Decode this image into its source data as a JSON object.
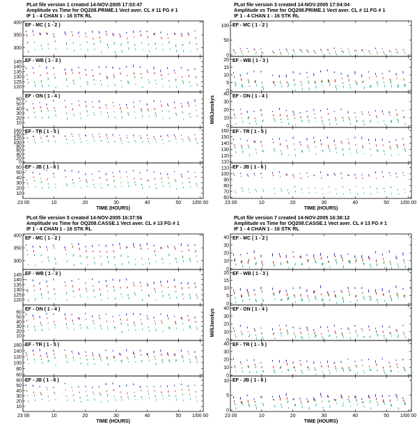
{
  "figure": {
    "xlabel": "TIME (HOURS)",
    "ylabel": "MilliJanskys",
    "x_tick_labels": [
      "23 00",
      "10",
      "20",
      "30",
      "40",
      "50",
      "1/00 00"
    ]
  },
  "chart_data": [
    {
      "type": "scatter",
      "header": [
        "PLot file version 1  created 14-NOV-2005 17:03:47",
        "Amplitude vs Time  for  OQ208.PRIME.1  Vect aver.  CL # 11  FG # 1",
        "IF 1 - 4   CHAN 1 - 16   STK RL"
      ],
      "xlabel": "TIME (HOURS)",
      "ylabel": "MilliJanskys",
      "xlim": [
        0,
        58
      ],
      "x_ticks": [
        0,
        10,
        20,
        30,
        40,
        50,
        57
      ],
      "panels": [
        {
          "label": "EF - MC ( 1 - 2 )",
          "ylim": [
            265,
            405
          ],
          "ticks": [
            300,
            350,
            400
          ],
          "base": [
            360,
            345,
            315,
            290
          ],
          "spread": 10
        },
        {
          "label": "EF - WB ( 1 - 3 )",
          "ylim": [
            115,
            150
          ],
          "ticks": [
            120,
            125,
            130,
            135,
            140,
            145
          ],
          "base": [
            138,
            132,
            127,
            122
          ],
          "spread": 2.5
        },
        {
          "label": "EF - ON ( 1 - 4 )",
          "ylim": [
            0,
            75
          ],
          "ticks": [
            0,
            10,
            20,
            30,
            40,
            50,
            60
          ],
          "base": [
            52,
            42,
            32,
            22
          ],
          "spread": 5
        },
        {
          "label": "EF - TR ( 1 - 5 )",
          "ylim": [
            -5,
            175
          ],
          "ticks": [
            0,
            20,
            40,
            60,
            80,
            100,
            120,
            140,
            160
          ],
          "base": [
            135,
            125,
            112,
            100
          ],
          "spread": 8
        },
        {
          "label": "EF - JB ( 1 - 6 )",
          "ylim": [
            0,
            68
          ],
          "ticks": [
            10,
            20,
            30,
            40,
            50,
            60
          ],
          "base": [
            50,
            38,
            30,
            22
          ],
          "spread": 4
        }
      ]
    },
    {
      "type": "scatter",
      "header": [
        "PLot file version 3  created 14-NOV-2005 17:04:04",
        "Amplitude vs Time  for  OQ208.PRIME.1  Vect aver.  CL # 11  FG # 1",
        "IF 1 - 4   CHAN 1 - 16   STK RL"
      ],
      "xlabel": "TIME (HOURS)",
      "ylabel": "MilliJanskys",
      "xlim": [
        0,
        58
      ],
      "x_ticks": [
        0,
        10,
        20,
        30,
        40,
        50,
        57
      ],
      "panels": [
        {
          "label": "EF - MC ( 1 - 2 )",
          "ylim": [
            -5,
            115
          ],
          "ticks": [
            0,
            50,
            100
          ],
          "base": [
            18,
            12,
            8,
            4
          ],
          "spread": 5
        },
        {
          "label": "EF - WB ( 1 - 3 )",
          "ylim": [
            -1,
            22
          ],
          "ticks": [
            0,
            5,
            10,
            15,
            20
          ],
          "base": [
            11,
            7,
            4,
            2
          ],
          "spread": 2
        },
        {
          "label": "EF - ON ( 1 - 4 )",
          "ylim": [
            -2,
            42
          ],
          "ticks": [
            0,
            10,
            20,
            30,
            40
          ],
          "base": [
            18,
            12,
            8,
            4
          ],
          "spread": 3
        },
        {
          "label": "EF - TR ( 1 - 5 )",
          "ylim": [
            108,
            165
          ],
          "ticks": [
            110,
            120,
            130,
            140,
            150,
            160
          ],
          "base": [
            145,
            138,
            130,
            124
          ],
          "spread": 4
        },
        {
          "label": "EF - JB ( 1 - 6 )",
          "ylim": [
            58,
            118
          ],
          "ticks": [
            60,
            70,
            80,
            90,
            100,
            110
          ],
          "base": [
            100,
            95,
            75,
            68
          ],
          "spread": 3
        }
      ]
    },
    {
      "type": "scatter",
      "header": [
        "PLot file version 5  created 14-NOV-2005 16:37:56",
        "Amplitude vs Time  for  OQ208.CASSE.1  Vect aver.  CL # 13  FG # 1",
        "IF 1 - 4   CHAN 1 - 16   STK RL"
      ],
      "xlabel": "TIME (HOURS)",
      "ylabel": "MilliJanskys",
      "xlim": [
        0,
        58
      ],
      "x_ticks": [
        0,
        10,
        20,
        30,
        40,
        50,
        57
      ],
      "panels": [
        {
          "label": "EF - MC ( 1 - 2 )",
          "ylim": [
            265,
            405
          ],
          "ticks": [
            300,
            350,
            400
          ],
          "base": [
            360,
            345,
            315,
            290
          ],
          "spread": 10
        },
        {
          "label": "EF - WB ( 1 - 3 )",
          "ylim": [
            115,
            150
          ],
          "ticks": [
            120,
            125,
            130,
            135,
            140,
            145
          ],
          "base": [
            138,
            132,
            127,
            122
          ],
          "spread": 2.5
        },
        {
          "label": "EF - ON ( 1 - 4 )",
          "ylim": [
            0,
            75
          ],
          "ticks": [
            0,
            10,
            20,
            30,
            40,
            50,
            60
          ],
          "base": [
            52,
            42,
            32,
            22
          ],
          "spread": 5
        },
        {
          "label": "EF - TR ( 1 - 5 )",
          "ylim": [
            55,
            175
          ],
          "ticks": [
            60,
            80,
            100,
            120,
            140,
            160
          ],
          "base": [
            135,
            125,
            112,
            100
          ],
          "spread": 8
        },
        {
          "label": "EF - JB ( 1 - 6 )",
          "ylim": [
            0,
            68
          ],
          "ticks": [
            10,
            20,
            30,
            40,
            50,
            60
          ],
          "base": [
            50,
            38,
            30,
            22
          ],
          "spread": 4
        }
      ]
    },
    {
      "type": "scatter",
      "header": [
        "PLot file version 7  created 14-NOV-2005 16:38:12",
        "Amplitude vs Time  for  OQ208.CASSE.1  Vect aver.  CL # 13  FG # 1",
        "IF 1 - 4   CHAN 1 - 16   STK RL"
      ],
      "xlabel": "TIME (HOURS)",
      "ylabel": "MilliJanskys",
      "xlim": [
        0,
        58
      ],
      "x_ticks": [
        0,
        10,
        20,
        30,
        40,
        50,
        57
      ],
      "panels": [
        {
          "label": "EF - MC ( 1 - 2 )",
          "ylim": [
            -1,
            44
          ],
          "ticks": [
            0,
            10,
            20,
            30,
            40
          ],
          "base": [
            18,
            12,
            8,
            4
          ],
          "spread": 4
        },
        {
          "label": "EF - WB ( 1 - 3 )",
          "ylim": [
            -1,
            22
          ],
          "ticks": [
            0,
            5,
            10,
            15,
            20
          ],
          "base": [
            9,
            6,
            4,
            2
          ],
          "spread": 2
        },
        {
          "label": "EF - ON ( 1 - 4 )",
          "ylim": [
            -1,
            44
          ],
          "ticks": [
            0,
            10,
            20,
            30,
            40
          ],
          "base": [
            15,
            10,
            6,
            3
          ],
          "spread": 3
        },
        {
          "label": "EF - TR ( 1 - 5 )",
          "ylim": [
            -1,
            44
          ],
          "ticks": [
            0,
            10,
            20,
            30,
            40
          ],
          "base": [
            18,
            12,
            8,
            4
          ],
          "spread": 3
        },
        {
          "label": "EF - JB ( 1 - 6 )",
          "ylim": [
            -0.5,
            11.5
          ],
          "ticks": [
            0,
            5,
            10
          ],
          "base": [
            4.5,
            3.5,
            2.5,
            1.5
          ],
          "spread": 1
        }
      ]
    }
  ],
  "series_colors": [
    "#2222cc",
    "#cc2222",
    "#22aa44",
    "#22bbcc"
  ]
}
